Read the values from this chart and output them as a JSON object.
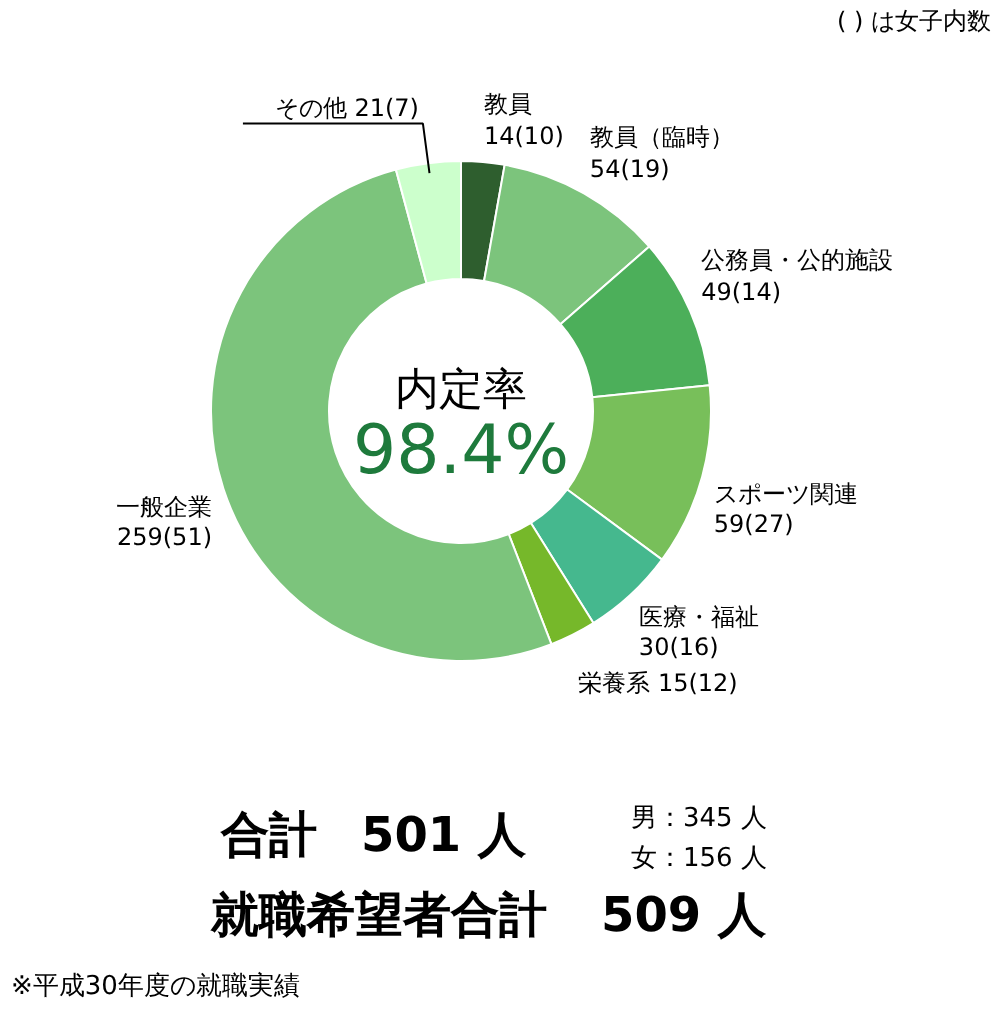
{
  "chart_data": {
    "type": "donut",
    "categories": [
      "教員",
      "教員（臨時）",
      "公務員・公的施設",
      "スポーツ関連",
      "医療・福祉",
      "栄養系",
      "一般企業",
      "その他"
    ],
    "values": [
      14,
      54,
      49,
      59,
      30,
      15,
      259,
      21
    ],
    "value_labels": [
      "14(10)",
      "54(19)",
      "49(14)",
      "59(27)",
      "30(16)",
      "15(12)",
      "259(51)",
      "21(7)"
    ],
    "colors": [
      "#2e5e2e",
      "#7cc47c",
      "#4caf5a",
      "#78bf5a",
      "#45b88e",
      "#76b82a",
      "#7cc47c",
      "#ccffcc"
    ],
    "annotations": [
      "( ) は女子内数",
      "内定率",
      "98.4%",
      "合計",
      "501 人",
      "男：345 人",
      "女：156 人",
      "就職希望者合計",
      "509 人",
      "※平成30年度の就職実績"
    ]
  }
}
